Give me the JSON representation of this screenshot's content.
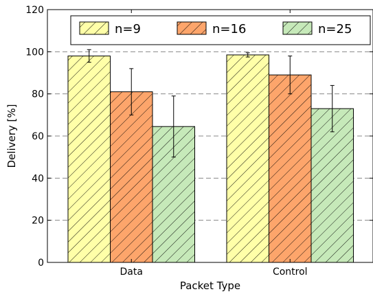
{
  "chart_data": {
    "type": "bar",
    "title": "",
    "xlabel": "Packet Type",
    "ylabel": "Delivery [%]",
    "categories": [
      "Data",
      "Control"
    ],
    "ylim": [
      0,
      120
    ],
    "yticks": [
      0,
      20,
      40,
      60,
      80,
      100,
      120
    ],
    "grid": "horizontal dashed",
    "legend_position": "top",
    "hatch": "diagonal",
    "series": [
      {
        "name": "n=9",
        "color": "#ffffa8",
        "values": [
          98,
          98.5
        ],
        "errors": [
          3,
          1
        ]
      },
      {
        "name": "n=16",
        "color": "#fda56b",
        "values": [
          81,
          89
        ],
        "errors": [
          11,
          9
        ]
      },
      {
        "name": "n=25",
        "color": "#c6e9b9",
        "values": [
          64.5,
          73
        ],
        "errors": [
          14.5,
          11
        ]
      }
    ]
  }
}
